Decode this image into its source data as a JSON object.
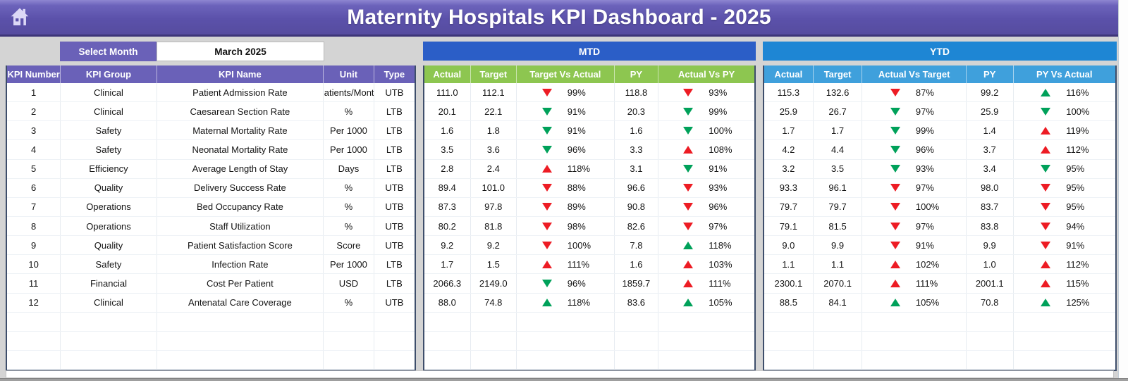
{
  "window": {
    "title": "Maternity Hospitals KPI Dashboard - 2025"
  },
  "controls": {
    "select_month_label": "Select Month",
    "selected_month": "March 2025"
  },
  "icons": {
    "home": "home-icon"
  },
  "colors": {
    "accent_purple": "#6a61b8",
    "banner_purple": "#5b51aa",
    "mtd_banner_blue": "#2b5ec7",
    "mtd_header_green": "#8dc650",
    "ytd_banner_blue": "#1e86d4",
    "ytd_header_blue": "#3fa0dc",
    "good_green": "#00a15a",
    "alert_red": "#ed1c24"
  },
  "empty_rows": 3,
  "kpi_table": {
    "headers": [
      "KPI Number",
      "KPI Group",
      "KPI Name",
      "Unit",
      "Type"
    ],
    "rows": [
      {
        "number": "1",
        "group": "Clinical",
        "name": "Patient Admission Rate",
        "unit": "Patients/Month",
        "type": "UTB"
      },
      {
        "number": "2",
        "group": "Clinical",
        "name": "Caesarean Section Rate",
        "unit": "%",
        "type": "LTB"
      },
      {
        "number": "3",
        "group": "Safety",
        "name": "Maternal Mortality Rate",
        "unit": "Per 1000",
        "type": "LTB"
      },
      {
        "number": "4",
        "group": "Safety",
        "name": "Neonatal Mortality Rate",
        "unit": "Per 1000",
        "type": "LTB"
      },
      {
        "number": "5",
        "group": "Efficiency",
        "name": "Average Length of Stay",
        "unit": "Days",
        "type": "LTB"
      },
      {
        "number": "6",
        "group": "Quality",
        "name": "Delivery Success Rate",
        "unit": "%",
        "type": "UTB"
      },
      {
        "number": "7",
        "group": "Operations",
        "name": "Bed Occupancy Rate",
        "unit": "%",
        "type": "UTB"
      },
      {
        "number": "8",
        "group": "Operations",
        "name": "Staff Utilization",
        "unit": "%",
        "type": "UTB"
      },
      {
        "number": "9",
        "group": "Quality",
        "name": "Patient Satisfaction Score",
        "unit": "Score",
        "type": "UTB"
      },
      {
        "number": "10",
        "group": "Safety",
        "name": "Infection Rate",
        "unit": "Per 1000",
        "type": "LTB"
      },
      {
        "number": "11",
        "group": "Financial",
        "name": "Cost Per Patient",
        "unit": "USD",
        "type": "LTB"
      },
      {
        "number": "12",
        "group": "Clinical",
        "name": "Antenatal Care Coverage",
        "unit": "%",
        "type": "UTB"
      }
    ]
  },
  "mtd": {
    "title": "MTD",
    "headers": [
      "Actual",
      "Target",
      "Target Vs Actual",
      "PY",
      "Actual Vs PY"
    ],
    "rows": [
      {
        "actual": "111.0",
        "target": "112.1",
        "cmp1": {
          "arrow": "down",
          "color": "red",
          "value": "99%"
        },
        "py": "118.8",
        "cmp2": {
          "arrow": "down",
          "color": "red",
          "value": "93%"
        }
      },
      {
        "actual": "20.1",
        "target": "22.1",
        "cmp1": {
          "arrow": "down",
          "color": "green",
          "value": "91%"
        },
        "py": "20.3",
        "cmp2": {
          "arrow": "down",
          "color": "green",
          "value": "99%"
        }
      },
      {
        "actual": "1.6",
        "target": "1.8",
        "cmp1": {
          "arrow": "down",
          "color": "green",
          "value": "91%"
        },
        "py": "1.6",
        "cmp2": {
          "arrow": "down",
          "color": "green",
          "value": "100%"
        }
      },
      {
        "actual": "3.5",
        "target": "3.6",
        "cmp1": {
          "arrow": "down",
          "color": "green",
          "value": "96%"
        },
        "py": "3.3",
        "cmp2": {
          "arrow": "up",
          "color": "red",
          "value": "108%"
        }
      },
      {
        "actual": "2.8",
        "target": "2.4",
        "cmp1": {
          "arrow": "up",
          "color": "red",
          "value": "118%"
        },
        "py": "3.1",
        "cmp2": {
          "arrow": "down",
          "color": "green",
          "value": "91%"
        }
      },
      {
        "actual": "89.4",
        "target": "101.0",
        "cmp1": {
          "arrow": "down",
          "color": "red",
          "value": "88%"
        },
        "py": "96.6",
        "cmp2": {
          "arrow": "down",
          "color": "red",
          "value": "93%"
        }
      },
      {
        "actual": "87.3",
        "target": "97.8",
        "cmp1": {
          "arrow": "down",
          "color": "red",
          "value": "89%"
        },
        "py": "90.8",
        "cmp2": {
          "arrow": "down",
          "color": "red",
          "value": "96%"
        }
      },
      {
        "actual": "80.2",
        "target": "81.8",
        "cmp1": {
          "arrow": "down",
          "color": "red",
          "value": "98%"
        },
        "py": "82.6",
        "cmp2": {
          "arrow": "down",
          "color": "red",
          "value": "97%"
        }
      },
      {
        "actual": "9.2",
        "target": "9.2",
        "cmp1": {
          "arrow": "down",
          "color": "red",
          "value": "100%"
        },
        "py": "7.8",
        "cmp2": {
          "arrow": "up",
          "color": "green",
          "value": "118%"
        }
      },
      {
        "actual": "1.7",
        "target": "1.5",
        "cmp1": {
          "arrow": "up",
          "color": "red",
          "value": "111%"
        },
        "py": "1.6",
        "cmp2": {
          "arrow": "up",
          "color": "red",
          "value": "103%"
        }
      },
      {
        "actual": "2066.3",
        "target": "2149.0",
        "cmp1": {
          "arrow": "down",
          "color": "green",
          "value": "96%"
        },
        "py": "1859.7",
        "cmp2": {
          "arrow": "up",
          "color": "red",
          "value": "111%"
        }
      },
      {
        "actual": "88.0",
        "target": "74.8",
        "cmp1": {
          "arrow": "up",
          "color": "green",
          "value": "118%"
        },
        "py": "83.6",
        "cmp2": {
          "arrow": "up",
          "color": "green",
          "value": "105%"
        }
      }
    ]
  },
  "ytd": {
    "title": "YTD",
    "headers": [
      "Actual",
      "Target",
      "Actual Vs Target",
      "PY",
      "PY Vs Actual"
    ],
    "rows": [
      {
        "actual": "115.3",
        "target": "132.6",
        "cmp1": {
          "arrow": "down",
          "color": "red",
          "value": "87%"
        },
        "py": "99.2",
        "cmp2": {
          "arrow": "up",
          "color": "green",
          "value": "116%"
        }
      },
      {
        "actual": "25.9",
        "target": "26.7",
        "cmp1": {
          "arrow": "down",
          "color": "green",
          "value": "97%"
        },
        "py": "25.9",
        "cmp2": {
          "arrow": "down",
          "color": "green",
          "value": "100%"
        }
      },
      {
        "actual": "1.7",
        "target": "1.7",
        "cmp1": {
          "arrow": "down",
          "color": "green",
          "value": "99%"
        },
        "py": "1.4",
        "cmp2": {
          "arrow": "up",
          "color": "red",
          "value": "119%"
        }
      },
      {
        "actual": "4.2",
        "target": "4.4",
        "cmp1": {
          "arrow": "down",
          "color": "green",
          "value": "96%"
        },
        "py": "3.7",
        "cmp2": {
          "arrow": "up",
          "color": "red",
          "value": "112%"
        }
      },
      {
        "actual": "3.2",
        "target": "3.5",
        "cmp1": {
          "arrow": "down",
          "color": "green",
          "value": "93%"
        },
        "py": "3.4",
        "cmp2": {
          "arrow": "down",
          "color": "green",
          "value": "95%"
        }
      },
      {
        "actual": "93.3",
        "target": "96.1",
        "cmp1": {
          "arrow": "down",
          "color": "red",
          "value": "97%"
        },
        "py": "98.0",
        "cmp2": {
          "arrow": "down",
          "color": "red",
          "value": "95%"
        }
      },
      {
        "actual": "79.7",
        "target": "79.7",
        "cmp1": {
          "arrow": "down",
          "color": "red",
          "value": "100%"
        },
        "py": "83.7",
        "cmp2": {
          "arrow": "down",
          "color": "red",
          "value": "95%"
        }
      },
      {
        "actual": "79.1",
        "target": "81.5",
        "cmp1": {
          "arrow": "down",
          "color": "red",
          "value": "97%"
        },
        "py": "83.8",
        "cmp2": {
          "arrow": "down",
          "color": "red",
          "value": "94%"
        }
      },
      {
        "actual": "9.0",
        "target": "9.9",
        "cmp1": {
          "arrow": "down",
          "color": "red",
          "value": "91%"
        },
        "py": "9.9",
        "cmp2": {
          "arrow": "down",
          "color": "red",
          "value": "91%"
        }
      },
      {
        "actual": "1.1",
        "target": "1.1",
        "cmp1": {
          "arrow": "up",
          "color": "red",
          "value": "102%"
        },
        "py": "1.0",
        "cmp2": {
          "arrow": "up",
          "color": "red",
          "value": "112%"
        }
      },
      {
        "actual": "2300.1",
        "target": "2070.1",
        "cmp1": {
          "arrow": "up",
          "color": "red",
          "value": "111%"
        },
        "py": "2001.1",
        "cmp2": {
          "arrow": "up",
          "color": "red",
          "value": "115%"
        }
      },
      {
        "actual": "88.5",
        "target": "84.1",
        "cmp1": {
          "arrow": "up",
          "color": "green",
          "value": "105%"
        },
        "py": "70.8",
        "cmp2": {
          "arrow": "up",
          "color": "green",
          "value": "125%"
        }
      }
    ]
  }
}
